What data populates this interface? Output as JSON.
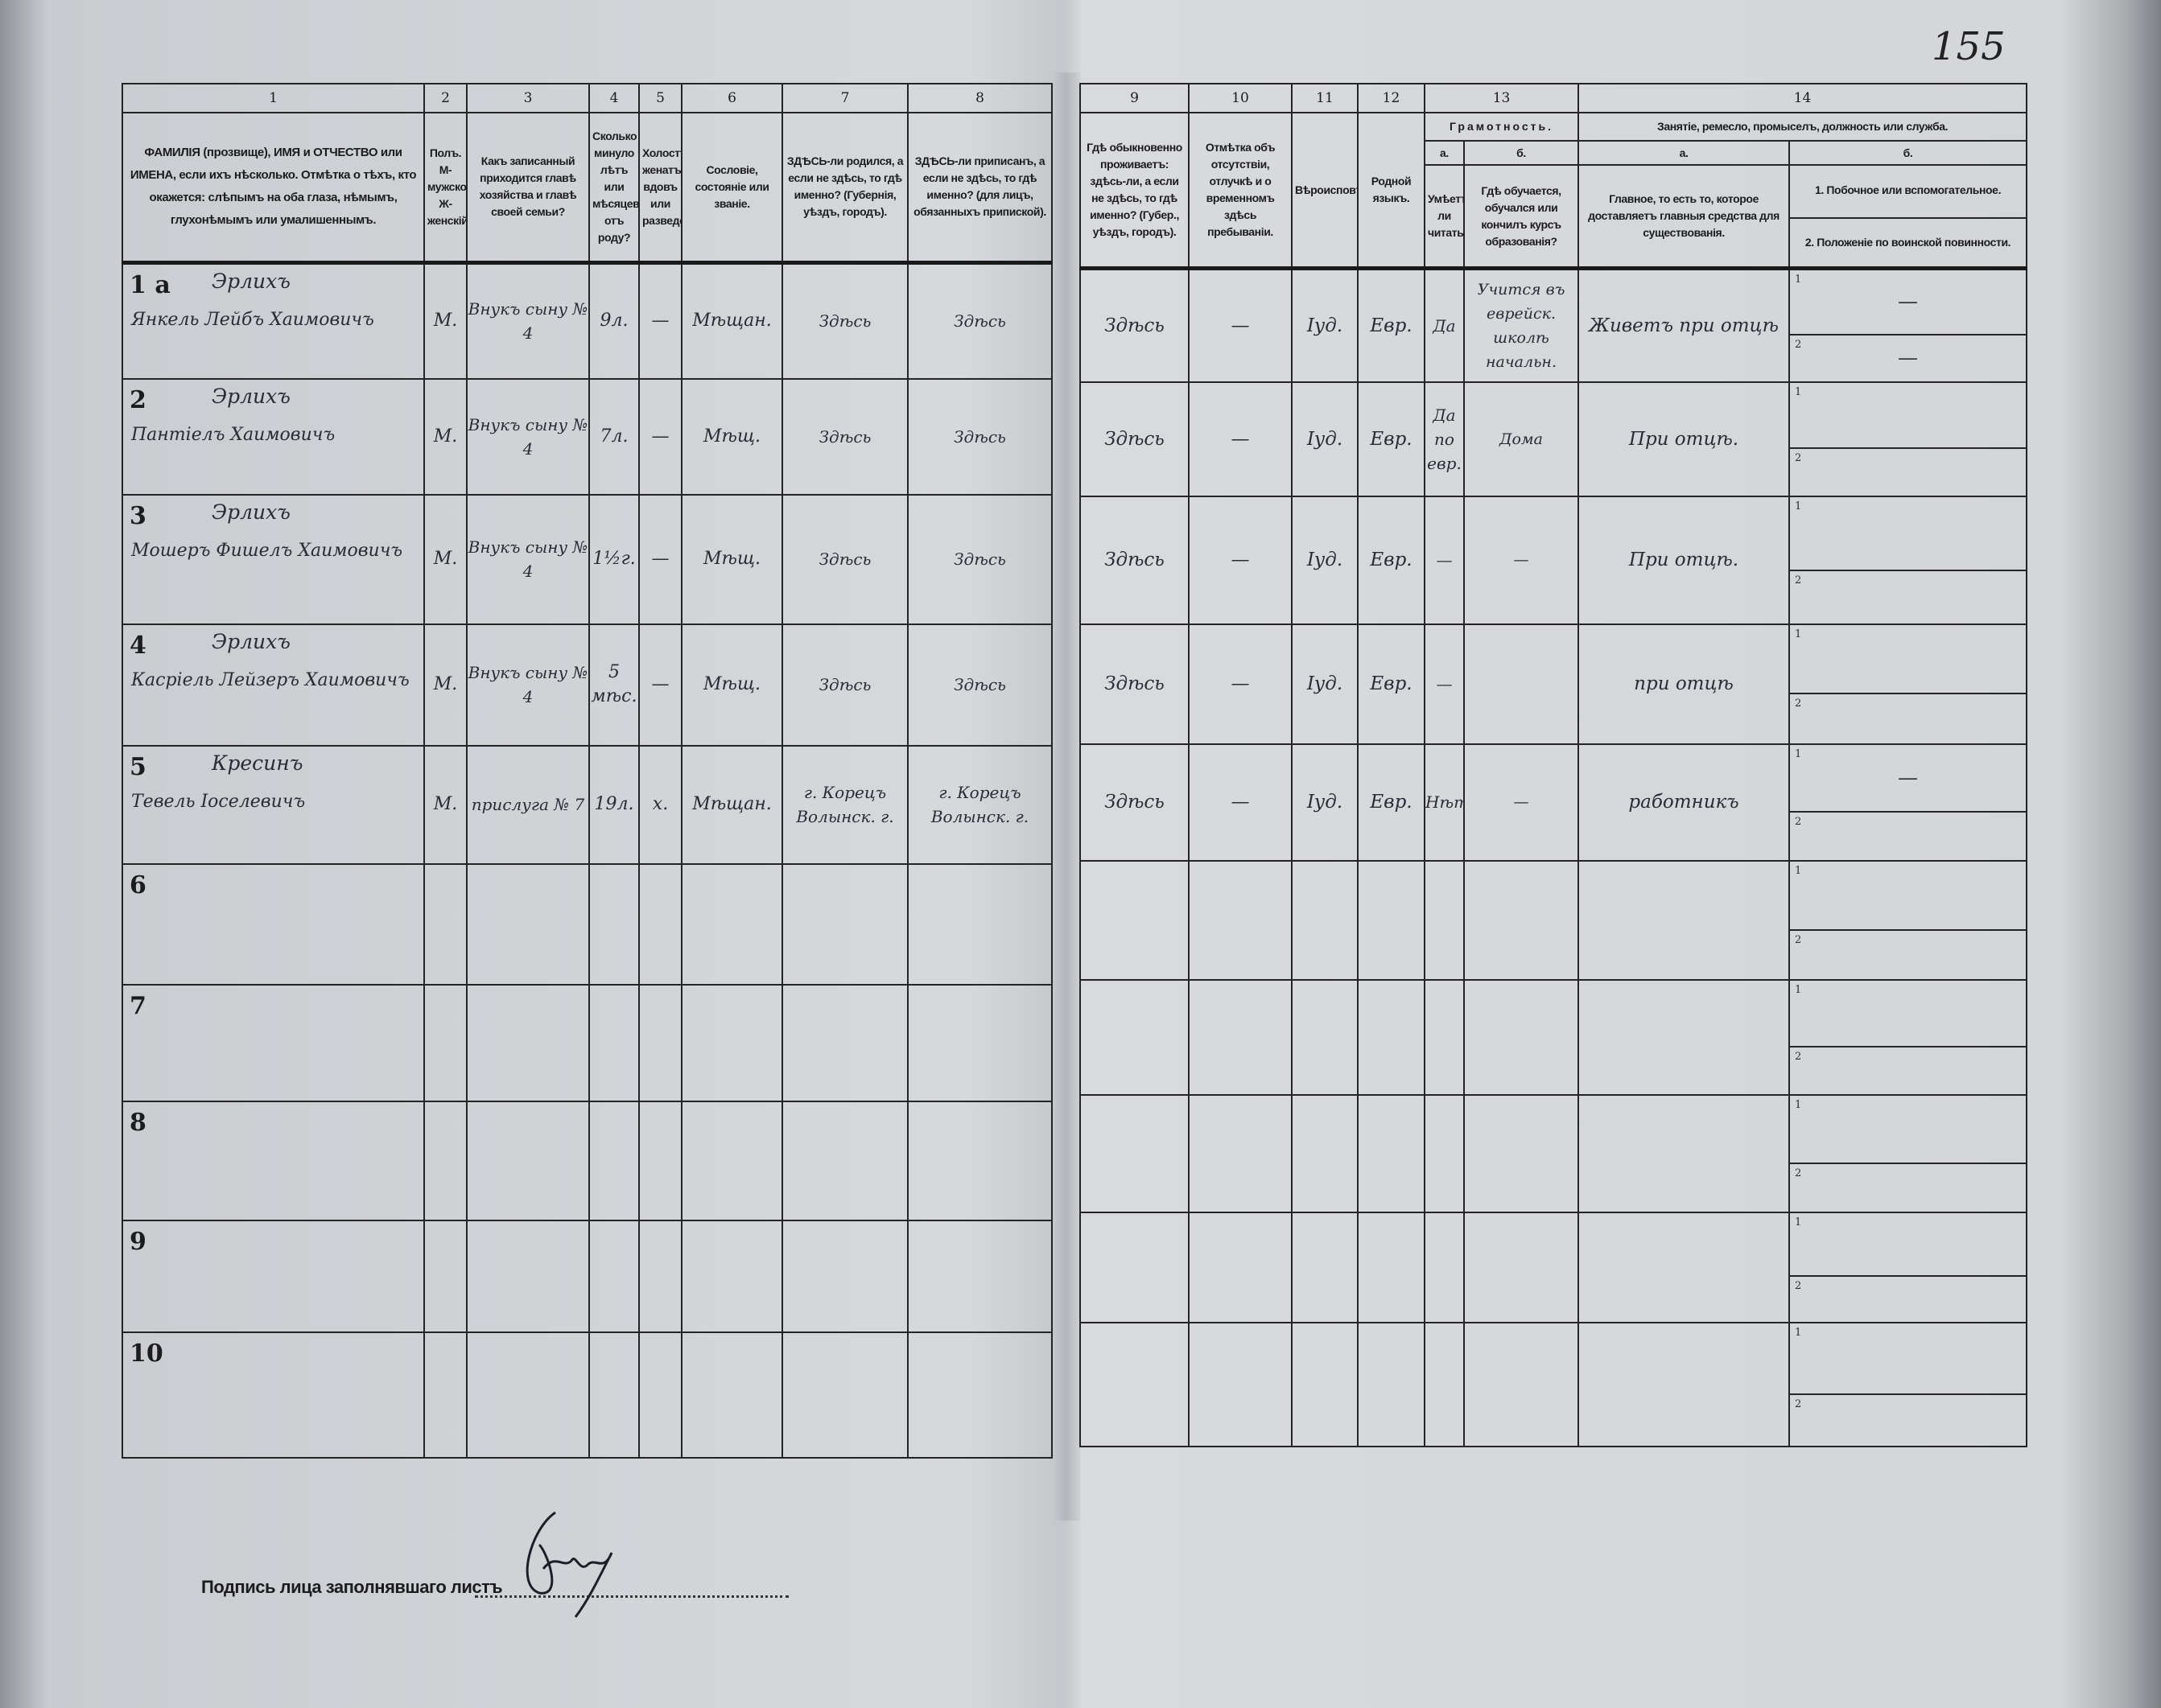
{
  "page_number": "155",
  "left_header": [
    {
      "num": "1",
      "text": "ФАМИЛІЯ (прозвище), ИМЯ и ОТЧЕСТВО или ИМЕНА, если ихъ нѣсколько. Отмѣтка о тѣхъ, кто окажется: слѣпымъ на оба глаза, нѣмымъ, глухонѣмымъ или умалишеннымъ."
    },
    {
      "num": "2",
      "text": "Полъ. М-мужской. Ж-женскій."
    },
    {
      "num": "3",
      "text": "Какъ записанный приходится главѣ хозяйства и главѣ своей семьи?"
    },
    {
      "num": "4",
      "text": "Сколько минуло лѣтъ или мѣсяцевъ отъ роду?"
    },
    {
      "num": "5",
      "text": "Холостъ, женатъ, вдовъ или разведенъ."
    },
    {
      "num": "6",
      "text": "Сословіе, состояніе или званіе."
    },
    {
      "num": "7",
      "text": "ЗДѢСЬ-ли родился, а если не здѣсь, то гдѣ именно? (Губернія, уѣздъ, городъ)."
    },
    {
      "num": "8",
      "text": "ЗДѢСЬ-ли приписанъ, а если не здѣсь, то гдѣ именно? (для лицъ, обязанныхъ припиской)."
    }
  ],
  "right_header": {
    "cols": [
      {
        "num": "9",
        "text": "Гдѣ обыкновенно проживаетъ: здѣсь-ли, а если не здѣсь, то гдѣ именно? (Губер., уѣздъ, городъ)."
      },
      {
        "num": "10",
        "text": "Отмѣтка объ отсутствіи, отлучкѣ и о временномъ здѣсь пребываніи."
      },
      {
        "num": "11",
        "text": "Вѣроисповѣданіе."
      },
      {
        "num": "12",
        "text": "Родной языкъ."
      }
    ],
    "literacy": {
      "num": "13",
      "title": "Грамотность.",
      "a_letter": "а.",
      "a_text": "Умѣетъ-ли читать?",
      "b_letter": "б.",
      "b_text": "Гдѣ обучается, обучался или кончилъ курсъ образованія?"
    },
    "occupation": {
      "num": "14",
      "title": "Занятіе, ремесло, промыселъ, должность или служба.",
      "a_letter": "а.",
      "a_text": "Главное, то есть то, которое доставляетъ главныя средства для существованія.",
      "b_letter": "б.",
      "b_1": "1. Побочное или вспомогательное.",
      "b_2": "2. Положеніе по воинской повинности."
    }
  },
  "sub_labels": {
    "one": "1",
    "two": "2"
  },
  "rows": [
    {
      "num": "1 а",
      "surname": "Эрлихъ",
      "name": "Янкель Лейбъ Хаимовичъ",
      "sex": "М.",
      "relation": "Внукъ сыну № 4",
      "age": "9л.",
      "marital": "—",
      "estate": "Мѣщан.",
      "born": "Здѣсь",
      "registered": "Здѣсь",
      "residence": "Здѣсь",
      "absence": "—",
      "religion": "Іуд.",
      "language": "Евр.",
      "can_read": "Да",
      "education": "Учится въ еврейск. школѣ начальн.",
      "occupation": "Живетъ при отцѣ",
      "side_1": "—",
      "side_2": "—"
    },
    {
      "num": "2",
      "surname": "Эрлихъ",
      "name": "Пантіелъ Хаимовичъ",
      "sex": "М.",
      "relation": "Внукъ сыну № 4",
      "age": "7л.",
      "marital": "—",
      "estate": "Мѣщ.",
      "born": "Здѣсь",
      "registered": "Здѣсь",
      "residence": "Здѣсь",
      "absence": "—",
      "religion": "Іуд.",
      "language": "Евр.",
      "can_read": "Да по евр.",
      "education": "Дома",
      "occupation": "При отцѣ.",
      "side_1": "",
      "side_2": ""
    },
    {
      "num": "3",
      "surname": "Эрлихъ",
      "name": "Мошеръ Фишелъ Хаимовичъ",
      "sex": "М.",
      "relation": "Внукъ сыну № 4",
      "age": "1½г.",
      "marital": "—",
      "estate": "Мѣщ.",
      "born": "Здѣсь",
      "registered": "Здѣсь",
      "residence": "Здѣсь",
      "absence": "—",
      "religion": "Іуд.",
      "language": "Евр.",
      "can_read": "—",
      "education": "—",
      "occupation": "При отцѣ.",
      "side_1": "",
      "side_2": ""
    },
    {
      "num": "4",
      "surname": "Эрлихъ",
      "name": "Касріель Лейзеръ Хаимовичъ",
      "sex": "М.",
      "relation": "Внукъ сыну № 4",
      "age": "5 мѣс.",
      "marital": "—",
      "estate": "Мѣщ.",
      "born": "Здѣсь",
      "registered": "Здѣсь",
      "residence": "Здѣсь",
      "absence": "—",
      "religion": "Іуд.",
      "language": "Евр.",
      "can_read": "—",
      "education": "",
      "occupation": "при отцѣ",
      "side_1": "",
      "side_2": ""
    },
    {
      "num": "5",
      "surname": "Кресинъ",
      "name": "Тевель Іоселевичъ",
      "sex": "М.",
      "relation": "прислуга № 7",
      "age": "19л.",
      "marital": "х.",
      "estate": "Мѣщан.",
      "born": "г. Корецъ Волынск. г.",
      "registered": "г. Корецъ Волынск. г.",
      "residence": "Здѣсь",
      "absence": "—",
      "religion": "Іуд.",
      "language": "Евр.",
      "can_read": "Нѣтъ",
      "education": "—",
      "occupation": "работникъ",
      "side_1": "—",
      "side_2": ""
    },
    {
      "num": "6"
    },
    {
      "num": "7"
    },
    {
      "num": "8"
    },
    {
      "num": "9"
    },
    {
      "num": "10"
    }
  ],
  "signature_label": "Подпись лица заполнявшаго листъ"
}
